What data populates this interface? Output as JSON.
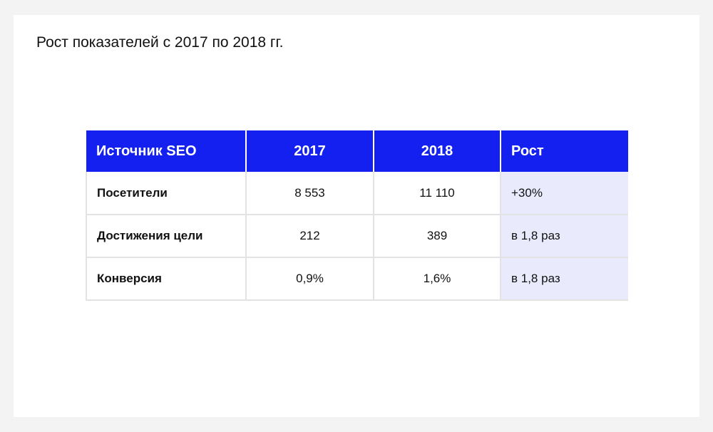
{
  "title": "Рост показателей с 2017 по 2018 гг.",
  "table": {
    "headers": [
      "Источник SEO",
      "2017",
      "2018",
      "Рост"
    ],
    "rows": [
      [
        "Посетители",
        "8 553",
        "11 110",
        "+30%"
      ],
      [
        "Достижения цели",
        "212",
        "389",
        "в 1,8 раз"
      ],
      [
        "Конверсия",
        "0,9%",
        "1,6%",
        "в 1,8 раз"
      ]
    ]
  },
  "colors": {
    "header_bg": "#1320f0",
    "growth_column_bg": "#e9ebfc",
    "page_bg": "#f3f3f3",
    "card_bg": "#ffffff"
  }
}
